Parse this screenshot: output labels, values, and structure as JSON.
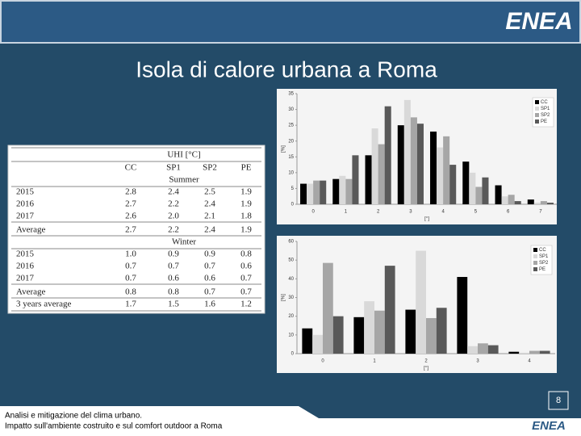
{
  "header": {
    "logo": "ENEA"
  },
  "title": "Isola di calore urbana a Roma",
  "table": {
    "caption": "UHI [°C]",
    "columns": [
      "CC",
      "SP1",
      "SP2",
      "PE"
    ],
    "sections": [
      {
        "name": "Summer",
        "rows": [
          {
            "label": "2015",
            "cells": [
              "2.8",
              "2.4",
              "2.5",
              "1.9"
            ]
          },
          {
            "label": "2016",
            "cells": [
              "2.7",
              "2.2",
              "2.4",
              "1.9"
            ]
          },
          {
            "label": "2017",
            "cells": [
              "2.6",
              "2.0",
              "2.1",
              "1.8"
            ]
          },
          {
            "label": "Average",
            "cells": [
              "2.7",
              "2.2",
              "2.4",
              "1.9"
            ]
          }
        ]
      },
      {
        "name": "Winter",
        "rows": [
          {
            "label": "2015",
            "cells": [
              "1.0",
              "0.9",
              "0.9",
              "0.8"
            ]
          },
          {
            "label": "2016",
            "cells": [
              "0.7",
              "0.7",
              "0.7",
              "0.6"
            ]
          },
          {
            "label": "2017",
            "cells": [
              "0.7",
              "0.6",
              "0.6",
              "0.7"
            ]
          },
          {
            "label": "Average",
            "cells": [
              "0.8",
              "0.8",
              "0.7",
              "0.7"
            ]
          }
        ]
      }
    ],
    "total": {
      "label": "3 years average",
      "cells": [
        "1.7",
        "1.5",
        "1.6",
        "1.2"
      ]
    }
  },
  "chart_data": [
    {
      "type": "bar",
      "x_label": "[°]",
      "y_label": "[%]",
      "legend": "upper right",
      "categories": [
        "0",
        "1",
        "2",
        "3",
        "4",
        "5",
        "6",
        "7"
      ],
      "series": [
        {
          "name": "CC",
          "color": "#000000",
          "values": [
            6.5,
            8,
            15.5,
            25,
            23,
            13.5,
            6,
            1.5
          ]
        },
        {
          "name": "SP1",
          "color": "#d9d9d9",
          "values": [
            6.5,
            9,
            24,
            33,
            18,
            10,
            2.5,
            0.5
          ]
        },
        {
          "name": "SP2",
          "color": "#a6a6a6",
          "values": [
            7.5,
            8,
            19,
            27.5,
            21.5,
            5.5,
            3,
            1
          ]
        },
        {
          "name": "PE",
          "color": "#595959",
          "values": [
            7.5,
            15.5,
            31,
            25.5,
            12.5,
            8.5,
            1,
            0.5
          ]
        }
      ],
      "ylim": [
        0,
        35
      ],
      "yticks": [
        0,
        5,
        10,
        15,
        20,
        25,
        30,
        35
      ]
    },
    {
      "type": "bar",
      "x_label": "[°]",
      "y_label": "[%]",
      "legend": "upper right",
      "categories": [
        "0",
        "1",
        "2",
        "3",
        "4"
      ],
      "series": [
        {
          "name": "CC",
          "color": "#000000",
          "values": [
            13.5,
            19.5,
            23.5,
            41,
            1
          ]
        },
        {
          "name": "SP1",
          "color": "#d9d9d9",
          "values": [
            10,
            28,
            55,
            4,
            0.5
          ]
        },
        {
          "name": "SP2",
          "color": "#a6a6a6",
          "values": [
            48.5,
            23,
            19,
            5.5,
            1.5
          ]
        },
        {
          "name": "PE",
          "color": "#595959",
          "values": [
            20,
            47,
            24.5,
            4.5,
            1.5
          ]
        }
      ],
      "ylim": [
        0,
        60
      ],
      "yticks": [
        0,
        10,
        20,
        30,
        40,
        50,
        60
      ]
    }
  ],
  "footer": {
    "lines": [
      "Analisi e mitigazione del clima urbano.",
      "Impatto sull'ambiente costruito e sul comfort outdoor a Roma"
    ],
    "page": "8",
    "logo": "ENEA"
  }
}
